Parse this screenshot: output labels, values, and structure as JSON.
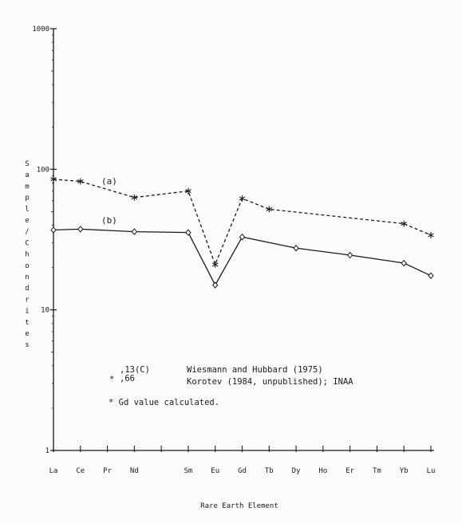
{
  "chart_data": {
    "type": "line",
    "xlabel": "Rare Earth Element",
    "ylabel": "Sample/Chondrites",
    "yscale": "log",
    "ylim": [
      1,
      1000
    ],
    "yticks": [
      {
        "value": 1,
        "label": "1"
      },
      {
        "value": 10,
        "label": "10"
      },
      {
        "value": 100,
        "label": "100"
      },
      {
        "value": 1000,
        "label": "1000"
      }
    ],
    "categories": [
      "La",
      "Ce",
      "Pr",
      "Nd",
      "Sm",
      "Eu",
      "Gd",
      "Tb",
      "Dy",
      "Ho",
      "Er",
      "Tm",
      "Yb",
      "Lu"
    ],
    "category_positions": [
      0,
      1,
      2,
      3,
      5,
      6,
      7,
      8,
      9,
      10,
      11,
      12,
      13,
      14
    ],
    "series": [
      {
        "name": "(a)",
        "style": "dashed",
        "marker": "asterisk",
        "points": [
          {
            "x": "La",
            "y": 85
          },
          {
            "x": "Ce",
            "y": 82
          },
          {
            "x": "Nd",
            "y": 63
          },
          {
            "x": "Sm",
            "y": 70
          },
          {
            "x": "Eu",
            "y": 21
          },
          {
            "x": "Gd",
            "y": 62
          },
          {
            "x": "Tb",
            "y": 52
          },
          {
            "x": "Yb",
            "y": 41
          },
          {
            "x": "Lu",
            "y": 34
          }
        ]
      },
      {
        "name": "(b)",
        "style": "solid",
        "marker": "diamond",
        "points": [
          {
            "x": "La",
            "y": 37
          },
          {
            "x": "Ce",
            "y": 37.5
          },
          {
            "x": "Nd",
            "y": 36
          },
          {
            "x": "Sm",
            "y": 35.5
          },
          {
            "x": "Eu",
            "y": 15
          },
          {
            "x": "Gd",
            "y": 33
          },
          {
            "x": "Dy",
            "y": 27.5
          },
          {
            "x": "Er",
            "y": 24.5
          },
          {
            "x": "Yb",
            "y": 21.5
          },
          {
            "x": "Lu",
            "y": 17.5
          }
        ]
      }
    ],
    "legend": {
      "lines": [
        {
          "sample": ",13(C)",
          "marker": "",
          "source": "Wiesmann and Hubbard (1975)"
        },
        {
          "sample": ",66",
          "marker": "*",
          "source": "Korotev (1984, unpublished); INAA"
        }
      ],
      "note": "* Gd value calculated."
    },
    "grid": false
  }
}
